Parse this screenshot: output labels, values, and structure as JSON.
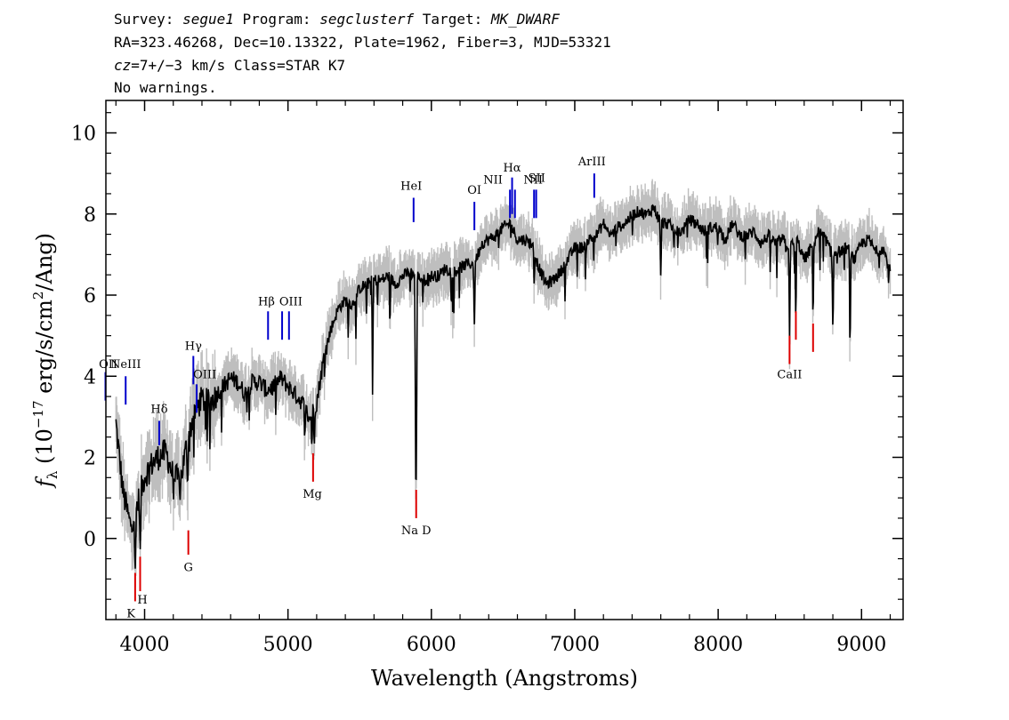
{
  "header": {
    "line1": {
      "p1": "Survey: ",
      "v1": "segue1",
      "p2": " Program: ",
      "v2": "segclusterf",
      "p3": " Target: ",
      "v3": "MK_DWARF"
    },
    "line2": "RA=323.46268, Dec=10.13322, Plate=1962, Fiber=3, MJD=53321",
    "line3": {
      "cz": "cz",
      "rest": "=7+/−3 km/s Class=STAR K7"
    },
    "line4": "No warnings."
  },
  "chart_data": {
    "type": "line",
    "xlabel": "Wavelength (Angstroms)",
    "ylabel": "fλ (10⁻¹⁷ erg/s/cm²/Ang)",
    "ylabel_parts": {
      "f": "f",
      "sub": "λ",
      "a": " (10",
      "exp": "−17",
      "b": " erg/s/cm",
      "exp2": "2",
      "c": "/Ang)"
    },
    "xlim": [
      3730,
      9290
    ],
    "ylim": [
      -2.0,
      10.8
    ],
    "x_ticks": [
      4000,
      5000,
      6000,
      7000,
      8000,
      9000
    ],
    "x_tick_labels": [
      "4000",
      "5000",
      "6000",
      "7000",
      "8000",
      "9000"
    ],
    "y_ticks": [
      0,
      2,
      4,
      6,
      8,
      10
    ],
    "y_tick_labels": [
      "0",
      "2",
      "4",
      "6",
      "8",
      "10"
    ],
    "grid": false,
    "colors": {
      "flux": "#000000",
      "error_band": "#bebebe",
      "emission_marker": "#0000cc",
      "absorption_marker": "#dd0000"
    },
    "series": [
      {
        "role": "continuum",
        "x": [
          3800,
          3850,
          3900,
          3950,
          4000,
          4050,
          4100,
          4150,
          4200,
          4250,
          4300,
          4350,
          4400,
          4450,
          4500,
          4550,
          4600,
          4650,
          4700,
          4750,
          4800,
          4850,
          4900,
          4950,
          5000,
          5050,
          5100,
          5150,
          5200,
          5250,
          5300,
          5350,
          5400,
          5450,
          5500,
          5550,
          5600,
          5650,
          5700,
          5750,
          5800,
          5850,
          5900,
          5950,
          6000,
          6050,
          6100,
          6150,
          6200,
          6250,
          6300,
          6350,
          6400,
          6450,
          6500,
          6550,
          6600,
          6650,
          6700,
          6750,
          6800,
          6850,
          6900,
          6950,
          7000,
          7050,
          7100,
          7150,
          7200,
          7250,
          7300,
          7350,
          7400,
          7450,
          7500,
          7550,
          7600,
          7650,
          7700,
          7750,
          7800,
          7850,
          7900,
          7950,
          8000,
          8050,
          8100,
          8150,
          8200,
          8250,
          8300,
          8350,
          8400,
          8450,
          8500,
          8550,
          8600,
          8650,
          8700,
          8750,
          8800,
          8850,
          8900,
          8950,
          9000,
          9050,
          9100,
          9150,
          9200
        ],
        "y": [
          2.9,
          1.2,
          0.4,
          0.9,
          1.6,
          1.9,
          2.1,
          2.2,
          1.6,
          1.5,
          2.5,
          3.2,
          3.5,
          3.4,
          3.6,
          3.8,
          4.0,
          3.9,
          3.6,
          3.9,
          3.9,
          3.7,
          3.8,
          4.0,
          3.8,
          3.6,
          3.4,
          3.0,
          3.4,
          4.5,
          5.2,
          5.7,
          5.9,
          5.8,
          6.2,
          6.3,
          6.4,
          6.4,
          6.5,
          6.3,
          6.5,
          6.6,
          6.5,
          6.4,
          6.5,
          6.5,
          6.7,
          6.6,
          6.7,
          6.8,
          6.8,
          7.3,
          7.4,
          7.5,
          7.7,
          7.8,
          7.4,
          7.4,
          7.3,
          6.7,
          6.3,
          6.4,
          6.6,
          6.9,
          7.2,
          7.2,
          7.4,
          7.5,
          7.8,
          7.5,
          7.7,
          7.8,
          8.0,
          8.1,
          8.0,
          8.2,
          7.8,
          7.8,
          7.6,
          7.6,
          7.9,
          7.8,
          7.6,
          7.7,
          7.7,
          7.4,
          7.8,
          7.5,
          7.5,
          7.6,
          7.3,
          7.5,
          7.3,
          7.4,
          7.2,
          7.4,
          6.9,
          7.2,
          7.6,
          7.4,
          7.0,
          7.1,
          7.2,
          6.9,
          7.3,
          7.4,
          7.1,
          7.2,
          6.6
        ]
      }
    ],
    "absorption_features": [
      {
        "x": 3934,
        "depth": 2.0
      },
      {
        "x": 3969,
        "depth": 1.8
      },
      {
        "x": 4300,
        "depth": 1.3
      },
      {
        "x": 5167,
        "depth": 0.9
      },
      {
        "x": 5183,
        "depth": 1.0
      },
      {
        "x": 5590,
        "depth": 3.0
      },
      {
        "x": 5890,
        "depth": 5.0
      },
      {
        "x": 5896,
        "depth": 5.0
      },
      {
        "x": 6300,
        "depth": 1.8
      },
      {
        "x": 7600,
        "depth": 1.5
      },
      {
        "x": 8498,
        "depth": 2.3
      },
      {
        "x": 8542,
        "depth": 2.4
      },
      {
        "x": 8662,
        "depth": 2.3
      },
      {
        "x": 8800,
        "depth": 2.2
      },
      {
        "x": 8920,
        "depth": 3.0
      }
    ],
    "line_markers": [
      {
        "label": "OII",
        "kind": "emission",
        "x": 3727,
        "y1": 3.4,
        "y2": 4.1,
        "lx": 3746,
        "ly": 4.2
      },
      {
        "label": "NeIII",
        "kind": "emission",
        "x": 3868,
        "y1": 3.3,
        "y2": 4.0,
        "lx": 3868,
        "ly": 4.2
      },
      {
        "label": "Hδ",
        "kind": "emission",
        "x": 4102,
        "y1": 2.3,
        "y2": 2.9,
        "lx": 4102,
        "ly": 3.1
      },
      {
        "label": "Hγ",
        "kind": "emission",
        "x": 4340,
        "y1": 3.8,
        "y2": 4.5,
        "lx": 4340,
        "ly": 4.65
      },
      {
        "label": "OIII",
        "kind": "emission",
        "x": 4363,
        "y1": 3.1,
        "y2": 3.8,
        "lx": 4420,
        "ly": 3.95
      },
      {
        "label": "Hβ",
        "kind": "emission",
        "x": 4861,
        "y1": 4.9,
        "y2": 5.6,
        "lx": 4850,
        "ly": 5.75
      },
      {
        "label": "OIII",
        "kind": "emission",
        "x": 4959,
        "y1": 4.9,
        "y2": 5.6,
        "lx": 5020,
        "ly": 5.75
      },
      {
        "label": "OIII",
        "kind": "emission",
        "x": 5007,
        "y1": 4.9,
        "y2": 5.6
      },
      {
        "label": "HeI",
        "kind": "emission",
        "x": 5876,
        "y1": 7.8,
        "y2": 8.4,
        "lx": 5860,
        "ly": 8.6
      },
      {
        "label": "OI",
        "kind": "emission",
        "x": 6300,
        "y1": 7.6,
        "y2": 8.3,
        "lx": 6300,
        "ly": 8.5
      },
      {
        "label": "NII",
        "kind": "emission",
        "x": 6548,
        "y1": 7.9,
        "y2": 8.6,
        "lx": 6430,
        "ly": 8.75
      },
      {
        "label": "Hα",
        "kind": "emission",
        "x": 6563,
        "y1": 8.0,
        "y2": 8.9,
        "lx": 6563,
        "ly": 9.05
      },
      {
        "label": "NII",
        "kind": "emission",
        "x": 6583,
        "y1": 7.9,
        "y2": 8.6
      },
      {
        "label": "SII",
        "kind": "emission",
        "x": 6716,
        "y1": 7.9,
        "y2": 8.6,
        "lx": 6735,
        "ly": 8.8
      },
      {
        "label": "NII",
        "kind": "emission",
        "x": 6731,
        "y1": 7.9,
        "y2": 8.6,
        "lx": 6710,
        "ly": 8.75
      },
      {
        "label": "ArIII",
        "kind": "emission",
        "x": 7136,
        "y1": 8.4,
        "y2": 9.0,
        "lx": 7120,
        "ly": 9.2
      },
      {
        "label": "K",
        "kind": "absorption",
        "x": 3934,
        "y1": -1.55,
        "y2": -0.85,
        "lx": 3905,
        "ly": -1.95
      },
      {
        "label": "H",
        "kind": "absorption",
        "x": 3969,
        "y1": -1.3,
        "y2": -0.45,
        "lx": 3985,
        "ly": -1.6
      },
      {
        "label": "G",
        "kind": "absorption",
        "x": 4305,
        "y1": -0.4,
        "y2": 0.2,
        "lx": 4305,
        "ly": -0.8
      },
      {
        "label": "Mg",
        "kind": "absorption",
        "x": 5175,
        "y1": 1.4,
        "y2": 2.1,
        "lx": 5170,
        "ly": 1.0
      },
      {
        "label": "Na D",
        "kind": "absorption",
        "x": 5894,
        "y1": 0.5,
        "y2": 1.2,
        "lx": 5894,
        "ly": 0.1
      },
      {
        "label": "CaII",
        "kind": "absorption",
        "x": 8498,
        "y1": 4.3,
        "y2": 5.0,
        "lx": 8498,
        "ly": 3.95
      },
      {
        "label": "CaII",
        "kind": "absorption",
        "x": 8542,
        "y1": 4.9,
        "y2": 5.6
      },
      {
        "label": "CaII",
        "kind": "absorption",
        "x": 8662,
        "y1": 4.6,
        "y2": 5.3
      }
    ]
  }
}
